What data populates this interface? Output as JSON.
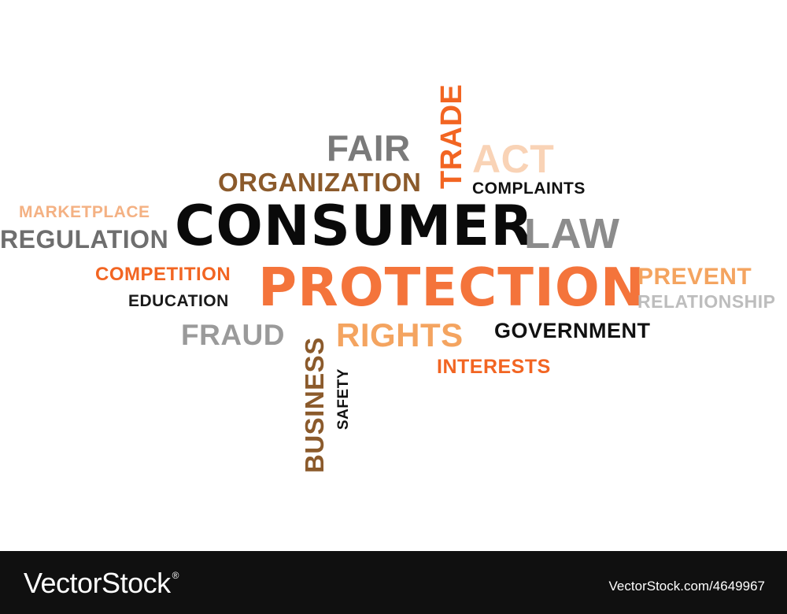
{
  "word_cloud": {
    "words": {
      "fair": {
        "text": "FAIR",
        "color": "#7a7a7a"
      },
      "trade": {
        "text": "TRADE",
        "color": "#f26522"
      },
      "act": {
        "text": "ACT",
        "color": "#f9d3b6"
      },
      "organization": {
        "text": "ORGANIZATION",
        "color": "#8b5a2b"
      },
      "complaints": {
        "text": "COMPLAINTS",
        "color": "#111111"
      },
      "marketplace": {
        "text": "MARKETPLACE",
        "color": "#f4b183"
      },
      "consumer": {
        "text": "CONSUMER",
        "color": "#0a0a0a"
      },
      "law": {
        "text": "LAW",
        "color": "#8c8c8c"
      },
      "regulation": {
        "text": "REGULATION",
        "color": "#6e6e6e"
      },
      "competition": {
        "text": "COMPETITION",
        "color": "#f26522"
      },
      "protection": {
        "text": "PROTECTION",
        "color": "#f4743b"
      },
      "prevent": {
        "text": "PREVENT",
        "color": "#f4a460"
      },
      "education": {
        "text": "EDUCATION",
        "color": "#1a1a1a"
      },
      "relationship": {
        "text": "RELATIONSHIP",
        "color": "#bdbdbd"
      },
      "fraud": {
        "text": "FRAUD",
        "color": "#9a9a9a"
      },
      "rights": {
        "text": "RIGHTS",
        "color": "#f4a460"
      },
      "government": {
        "text": "GOVERNMENT",
        "color": "#111111"
      },
      "interests": {
        "text": "INTERESTS",
        "color": "#f26522"
      },
      "business": {
        "text": "BUSINESS",
        "color": "#8b5a2b"
      },
      "safety": {
        "text": "SAFETY",
        "color": "#111111"
      }
    }
  },
  "footer": {
    "brand": "VectorStock",
    "brand_mark": "®",
    "image_ref": "VectorStock.com/4649967",
    "background": "#101010"
  }
}
